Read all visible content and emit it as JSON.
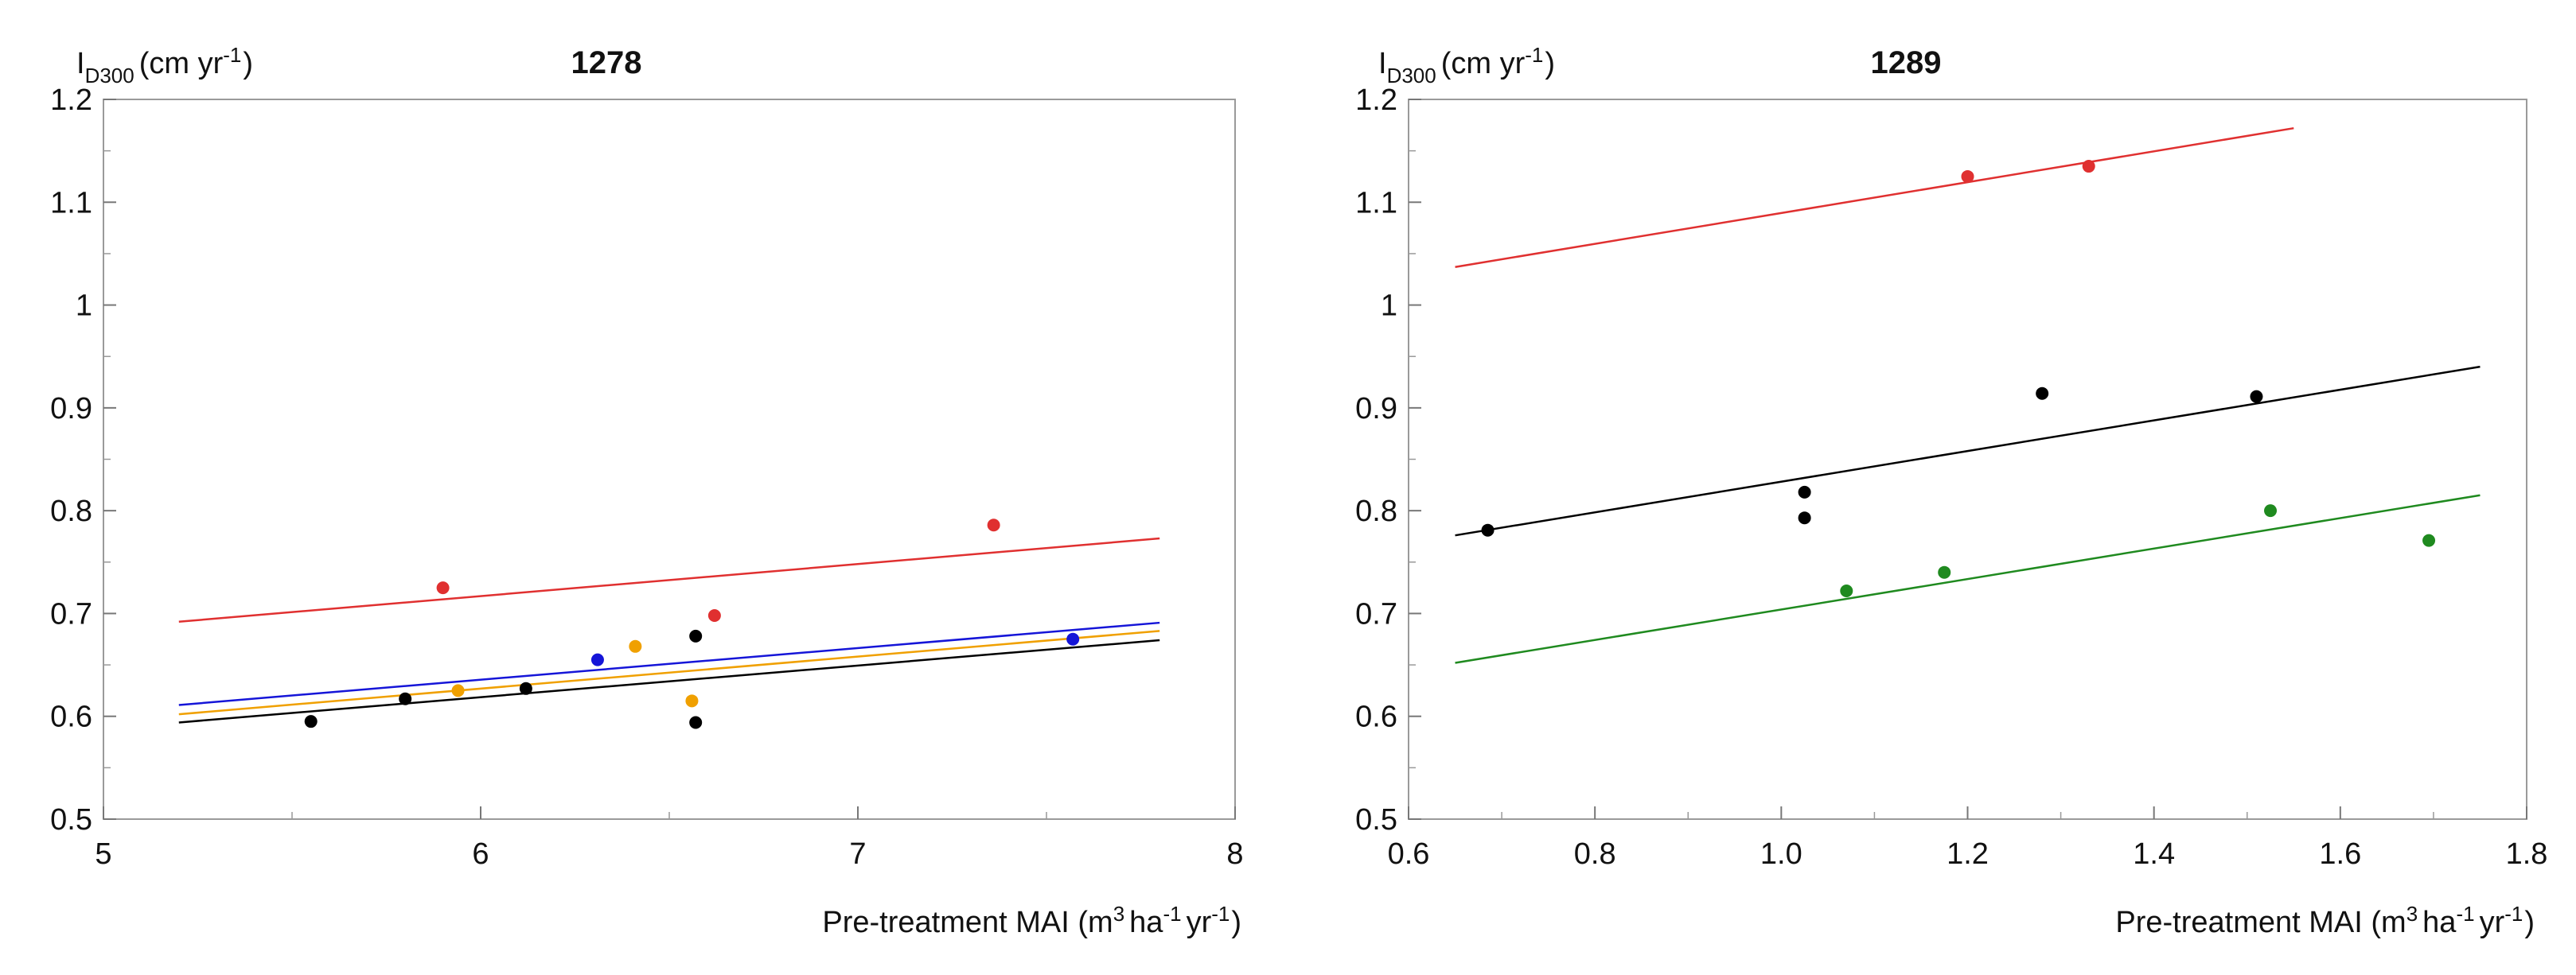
{
  "colors": {
    "red": "#e03030",
    "blue": "#1515d8",
    "orange": "#f0a000",
    "black": "#000000",
    "green": "#1f8a1f"
  },
  "chart_data": [
    {
      "type": "scatter",
      "title": "1278",
      "ylabel": {
        "main": "I",
        "sub": "D300",
        "unit": "(cm yr",
        "unit_sup": "-1",
        "unit_close": ")"
      },
      "xlabel": {
        "pre": "Pre-treatment MAI (m",
        "sup1": "3",
        "mid1": "ha",
        "sup2": "-1",
        "mid2": "yr",
        "sup3": "-1",
        "post": ")"
      },
      "xlim": [
        5,
        8
      ],
      "ylim": [
        0.5,
        1.2
      ],
      "xticks": [
        5,
        6,
        7,
        8
      ],
      "xtick_labels": [
        "5",
        "6",
        "7",
        "8"
      ],
      "yticks": [
        0.5,
        0.6,
        0.7,
        0.8,
        0.9,
        1.0,
        1.1,
        1.2
      ],
      "ytick_labels": [
        "0.5",
        "0.6",
        "0.7",
        "0.8",
        "0.9",
        "1",
        "1.1",
        "1.2"
      ],
      "series": [
        {
          "name": "red",
          "color": "#e03030",
          "points": [
            [
              5.9,
              0.725
            ],
            [
              6.62,
              0.698
            ],
            [
              7.36,
              0.786
            ]
          ],
          "fit": [
            [
              5.2,
              0.692
            ],
            [
              7.8,
              0.773
            ]
          ]
        },
        {
          "name": "blue",
          "color": "#1515d8",
          "points": [
            [
              6.31,
              0.655
            ],
            [
              7.57,
              0.675
            ]
          ],
          "fit": [
            [
              5.2,
              0.611
            ],
            [
              7.8,
              0.691
            ]
          ]
        },
        {
          "name": "orange",
          "color": "#f0a000",
          "points": [
            [
              5.94,
              0.625
            ],
            [
              6.41,
              0.668
            ],
            [
              6.56,
              0.615
            ]
          ],
          "fit": [
            [
              5.2,
              0.602
            ],
            [
              7.8,
              0.683
            ]
          ]
        },
        {
          "name": "black",
          "color": "#000000",
          "points": [
            [
              5.55,
              0.595
            ],
            [
              5.8,
              0.617
            ],
            [
              6.12,
              0.627
            ],
            [
              6.57,
              0.678
            ],
            [
              6.57,
              0.594
            ]
          ],
          "fit": [
            [
              5.2,
              0.594
            ],
            [
              7.8,
              0.674
            ]
          ]
        }
      ]
    },
    {
      "type": "scatter",
      "title": "1289",
      "ylabel": {
        "main": "I",
        "sub": "D300",
        "unit": "(cm yr",
        "unit_sup": "-1",
        "unit_close": ")"
      },
      "xlabel": {
        "pre": "Pre-treatment MAI (m",
        "sup1": "3",
        "mid1": "ha",
        "sup2": "-1",
        "mid2": "yr",
        "sup3": "-1",
        "post": ")"
      },
      "xlim": [
        0.6,
        1.8
      ],
      "ylim": [
        0.5,
        1.2
      ],
      "xticks": [
        0.6,
        0.8,
        1.0,
        1.2,
        1.4,
        1.6,
        1.8
      ],
      "xtick_labels": [
        "0.6",
        "0.8",
        "1.0",
        "1.2",
        "1.4",
        "1.6",
        "1.8"
      ],
      "yticks": [
        0.5,
        0.6,
        0.7,
        0.8,
        0.9,
        1.0,
        1.1,
        1.2
      ],
      "ytick_labels": [
        "0.5",
        "0.6",
        "0.7",
        "0.8",
        "0.9",
        "1",
        "1.1",
        "1.2"
      ],
      "series": [
        {
          "name": "red",
          "color": "#e03030",
          "points": [
            [
              1.2,
              1.125
            ],
            [
              1.33,
              1.135
            ]
          ],
          "fit": [
            [
              0.65,
              1.037
            ],
            [
              1.55,
              1.172
            ]
          ]
        },
        {
          "name": "black",
          "color": "#000000",
          "points": [
            [
              0.685,
              0.781
            ],
            [
              1.025,
              0.818
            ],
            [
              1.025,
              0.793
            ],
            [
              1.28,
              0.914
            ],
            [
              1.51,
              0.911
            ]
          ],
          "fit": [
            [
              0.65,
              0.776
            ],
            [
              1.75,
              0.94
            ]
          ]
        },
        {
          "name": "green",
          "color": "#1f8a1f",
          "points": [
            [
              1.07,
              0.722
            ],
            [
              1.175,
              0.74
            ],
            [
              1.525,
              0.8
            ],
            [
              1.695,
              0.771
            ]
          ],
          "fit": [
            [
              0.65,
              0.652
            ],
            [
              1.75,
              0.815
            ]
          ]
        }
      ]
    }
  ]
}
